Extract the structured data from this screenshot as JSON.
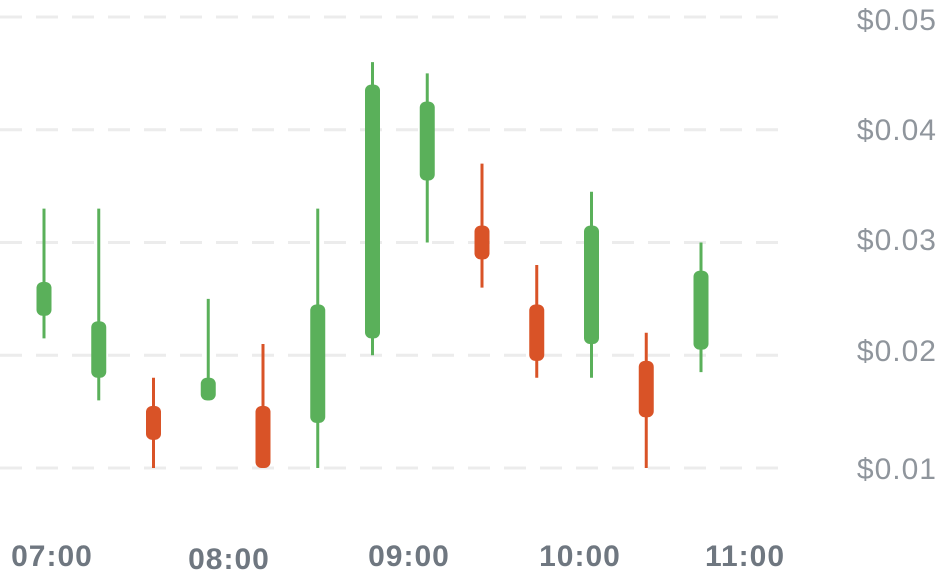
{
  "chart_data": {
    "type": "candlestick",
    "y_ticks": [
      "$0.05",
      "$0.04",
      "$0.03",
      "$0.02",
      "$0.01"
    ],
    "y_tick_values": [
      0.05,
      0.04,
      0.03,
      0.02,
      0.01
    ],
    "x_ticks": [
      "07:00",
      "08:00",
      "09:00",
      "10:00",
      "11:00"
    ],
    "ylim": [
      0.01,
      0.05
    ],
    "grid": true,
    "colors": {
      "up": "#5ab05a",
      "down": "#d95327",
      "grid": "#ececec"
    },
    "candles": [
      {
        "open": 0.0235,
        "close": 0.0265,
        "high": 0.033,
        "low": 0.0215
      },
      {
        "open": 0.018,
        "close": 0.023,
        "high": 0.033,
        "low": 0.016
      },
      {
        "open": 0.0155,
        "close": 0.0125,
        "high": 0.018,
        "low": 0.01
      },
      {
        "open": 0.016,
        "close": 0.018,
        "high": 0.025,
        "low": 0.016
      },
      {
        "open": 0.0155,
        "close": 0.01,
        "high": 0.021,
        "low": 0.01
      },
      {
        "open": 0.014,
        "close": 0.0245,
        "high": 0.033,
        "low": 0.01
      },
      {
        "open": 0.0215,
        "close": 0.044,
        "high": 0.046,
        "low": 0.02
      },
      {
        "open": 0.0355,
        "close": 0.0425,
        "high": 0.045,
        "low": 0.03
      },
      {
        "open": 0.0315,
        "close": 0.0285,
        "high": 0.037,
        "low": 0.026
      },
      {
        "open": 0.0245,
        "close": 0.0195,
        "high": 0.028,
        "low": 0.018
      },
      {
        "open": 0.021,
        "close": 0.0315,
        "high": 0.0345,
        "low": 0.018
      },
      {
        "open": 0.0195,
        "close": 0.0145,
        "high": 0.022,
        "low": 0.01
      },
      {
        "open": 0.0205,
        "close": 0.0275,
        "high": 0.03,
        "low": 0.0185
      }
    ]
  }
}
